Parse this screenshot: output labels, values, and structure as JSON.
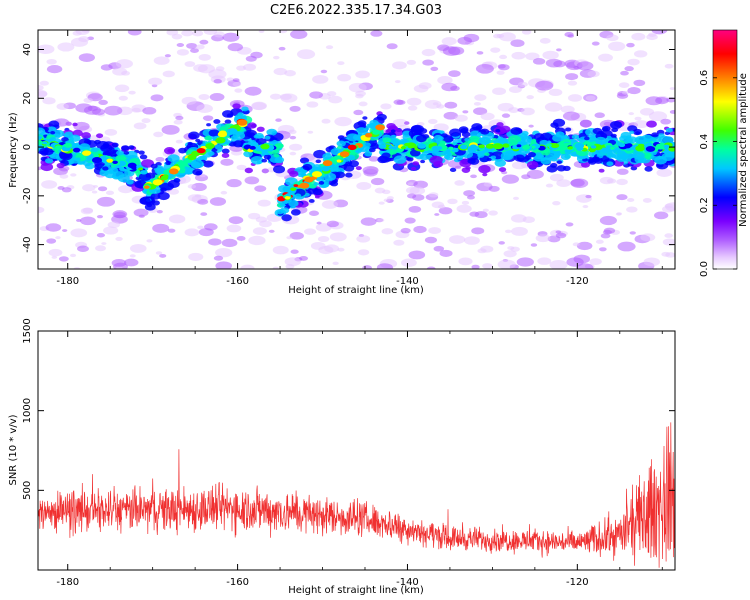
{
  "figure_title": "C2E6.2022.335.17.34.G03",
  "colors": {
    "snr_line": "#f03030",
    "colormap": [
      "#ffffff",
      "#e6c8ff",
      "#b060ff",
      "#7a00ff",
      "#0000ff",
      "#00c8ff",
      "#00ffa0",
      "#40ff00",
      "#ffff00",
      "#ff8000",
      "#ff0000",
      "#ff0080"
    ]
  },
  "chart_data": [
    {
      "type": "heatmap",
      "xlabel": "Height of straight line (km)",
      "ylabel": "Frequency (Hz)",
      "xlim": [
        -183.5,
        -108.5
      ],
      "ylim": [
        -50,
        48
      ],
      "x_ticks": [
        -180,
        -160,
        -140,
        -120
      ],
      "y_ticks": [
        -40,
        -20,
        0,
        20,
        40
      ],
      "colorbar": {
        "label": "Normalized spectral amplitude",
        "range": [
          0.0,
          0.75
        ],
        "ticks": [
          "0.0",
          "0.2",
          "0.4",
          "0.6"
        ],
        "tick_values": [
          0.0,
          0.2,
          0.4,
          0.6
        ]
      },
      "ridge_segments": [
        {
          "x": [
            -171,
            -159
          ],
          "y": [
            -18,
            11
          ]
        },
        {
          "x": [
            -155,
            -143
          ],
          "y": [
            -22,
            8
          ]
        },
        {
          "x": [
            -143,
            -108.5
          ],
          "y": [
            0,
            0
          ]
        },
        {
          "x": [
            -183.5,
            -171
          ],
          "y": [
            3,
            -10
          ]
        }
      ]
    },
    {
      "type": "line",
      "xlabel": "Height of straight line (km)",
      "ylabel": "SNR (10 * v/v)",
      "xlim": [
        -183.5,
        -108.5
      ],
      "ylim": [
        0,
        1500
      ],
      "x_ticks": [
        -180,
        -160,
        -140,
        -120
      ],
      "y_ticks": [
        500,
        1000,
        1500
      ],
      "series_profile": [
        {
          "x": -183.5,
          "mean": 360,
          "spread": 180
        },
        {
          "x": -160,
          "mean": 390,
          "spread": 220
        },
        {
          "x": -145,
          "mean": 320,
          "spread": 160
        },
        {
          "x": -135,
          "mean": 200,
          "spread": 110
        },
        {
          "x": -120,
          "mean": 170,
          "spread": 110
        },
        {
          "x": -115,
          "mean": 220,
          "spread": 200
        },
        {
          "x": -108.5,
          "mean": 480,
          "spread": 700
        }
      ]
    }
  ]
}
